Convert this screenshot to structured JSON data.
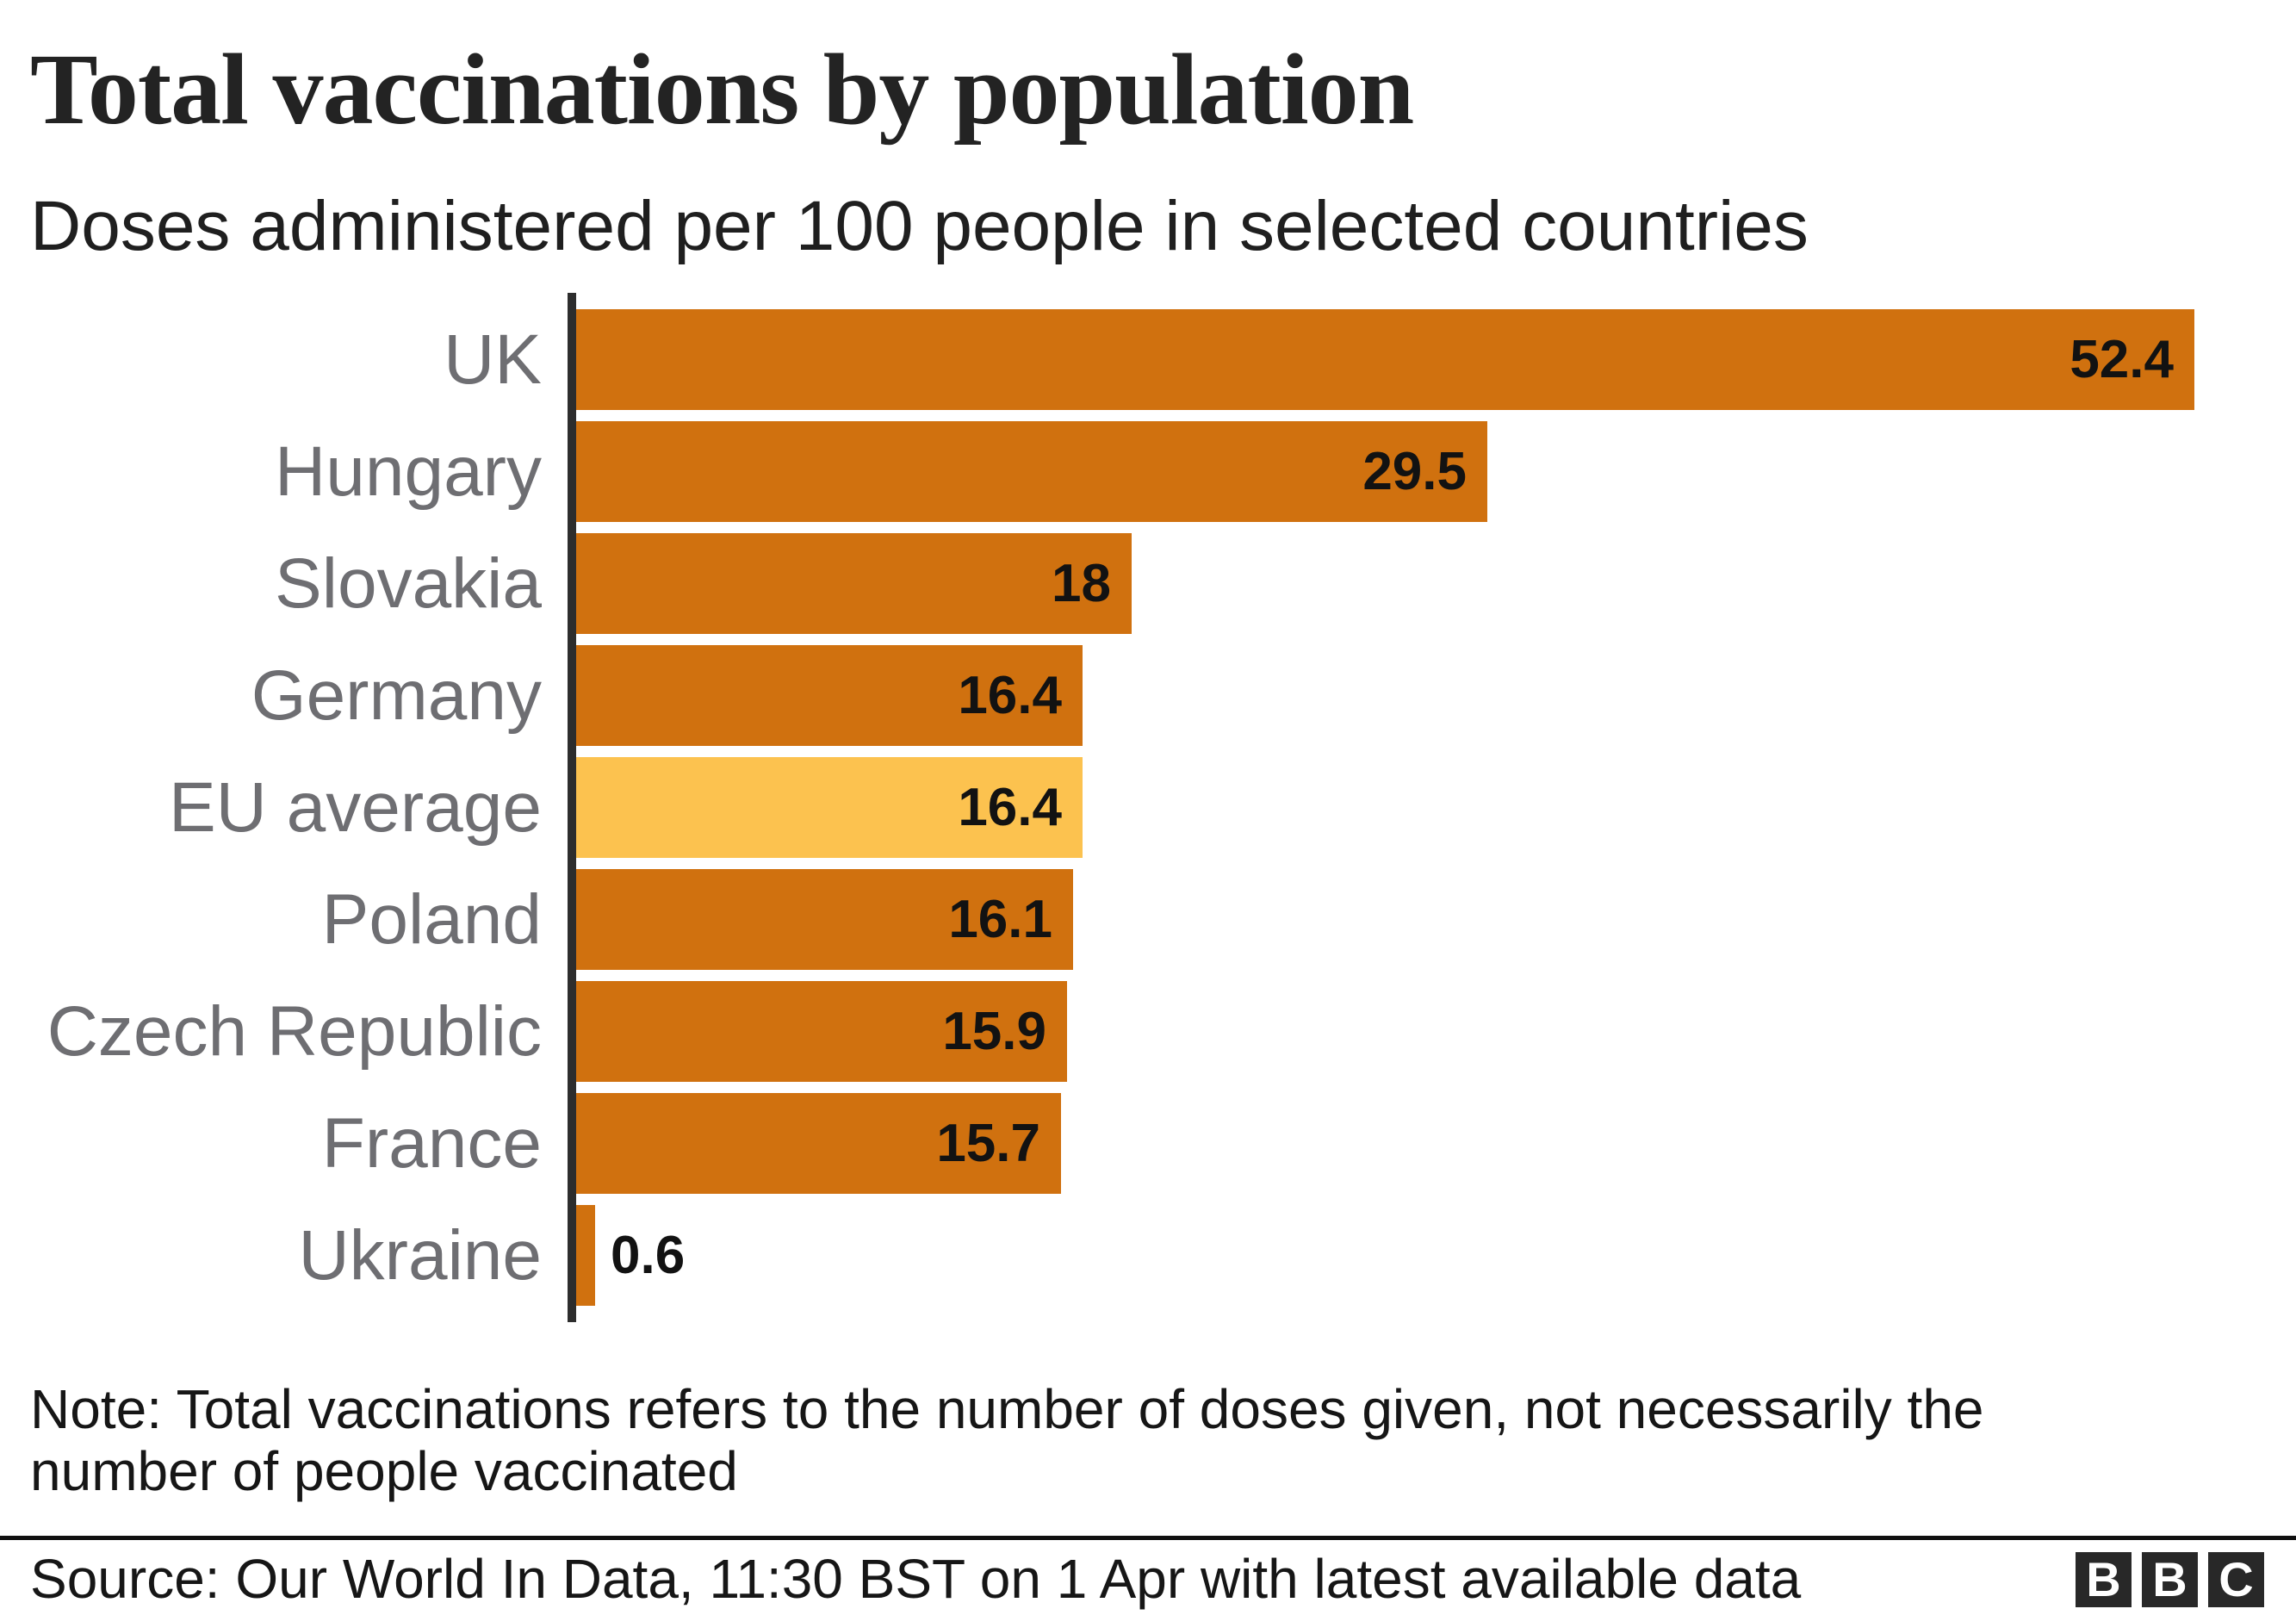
{
  "header": {
    "title": "Total vaccinations by population",
    "subtitle": "Doses administered per 100 people in selected countries"
  },
  "chart_data": {
    "type": "bar",
    "orientation": "horizontal",
    "title": "Total vaccinations by population",
    "subtitle": "Doses administered per 100 people in selected countries",
    "categories": [
      "UK",
      "Hungary",
      "Slovakia",
      "Germany",
      "EU average",
      "Poland",
      "Czech Republic",
      "France",
      "Ukraine"
    ],
    "values": [
      52.4,
      29.5,
      18,
      16.4,
      16.4,
      16.1,
      15.9,
      15.7,
      0.6
    ],
    "bars": [
      {
        "category": "UK",
        "value": 52.4,
        "value_label": "52.4",
        "highlight": false,
        "value_label_position": "inside"
      },
      {
        "category": "Hungary",
        "value": 29.5,
        "value_label": "29.5",
        "highlight": false,
        "value_label_position": "inside"
      },
      {
        "category": "Slovakia",
        "value": 18,
        "value_label": "18",
        "highlight": false,
        "value_label_position": "inside"
      },
      {
        "category": "Germany",
        "value": 16.4,
        "value_label": "16.4",
        "highlight": false,
        "value_label_position": "inside"
      },
      {
        "category": "EU average",
        "value": 16.4,
        "value_label": "16.4",
        "highlight": true,
        "value_label_position": "inside"
      },
      {
        "category": "Poland",
        "value": 16.1,
        "value_label": "16.1",
        "highlight": false,
        "value_label_position": "inside"
      },
      {
        "category": "Czech Republic",
        "value": 15.9,
        "value_label": "15.9",
        "highlight": false,
        "value_label_position": "inside"
      },
      {
        "category": "France",
        "value": 15.7,
        "value_label": "15.7",
        "highlight": false,
        "value_label_position": "inside"
      },
      {
        "category": "Ukraine",
        "value": 0.6,
        "value_label": "0.6",
        "highlight": false,
        "value_label_position": "outside"
      }
    ],
    "highlighted_category": "EU average",
    "bar_color": "#d0710f",
    "highlight_color": "#fcc24f",
    "category_label_color": "#6e6e72",
    "value_label_color": "#121212",
    "axis_color": "#2d2d2d",
    "xlim": [
      0,
      55.7
    ],
    "grid": false,
    "legend": null
  },
  "footer": {
    "note_line1": "Note: Total vaccinations refers to the number of doses given, not necessarily the",
    "note_line2": "number of people vaccinated",
    "source": "Source: Our World In Data, 11:30 BST on 1 Apr with latest available data",
    "logo_letters": [
      "B",
      "B",
      "C"
    ]
  }
}
